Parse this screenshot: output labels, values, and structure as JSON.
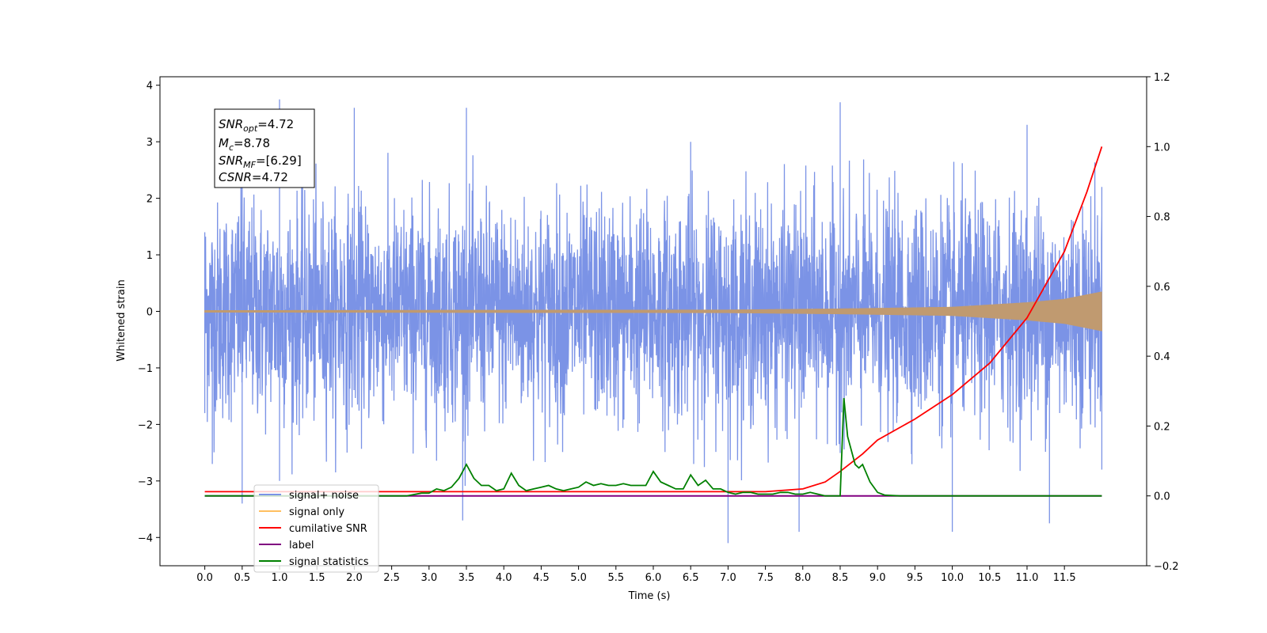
{
  "chart_data": {
    "type": "line",
    "xlabel": "Time (s)",
    "ylabel": "Whitened strain",
    "xlim": [
      -0.6,
      12.6
    ],
    "ylim": [
      -4.5,
      4.15
    ],
    "y2lim": [
      -0.2,
      1.2
    ],
    "x_ticks": [
      "0.0",
      "0.5",
      "1.0",
      "1.5",
      "2.0",
      "2.5",
      "3.0",
      "3.5",
      "4.0",
      "4.5",
      "5.0",
      "5.5",
      "6.0",
      "6.5",
      "7.0",
      "7.5",
      "8.0",
      "8.5",
      "9.0",
      "9.5",
      "10.0",
      "10.5",
      "11.0",
      "11.5"
    ],
    "y_ticks": [
      "4",
      "3",
      "2",
      "1",
      "0",
      "−1",
      "−2",
      "−3",
      "−4"
    ],
    "y2_ticks": [
      "1.2",
      "1.0",
      "0.8",
      "0.6",
      "0.4",
      "0.2",
      "0.0",
      "−0.2"
    ],
    "grid": false,
    "legend_placement": "lower-left",
    "annotation": {
      "snr_opt_base": "SNR",
      "snr_opt_sub": "opt",
      "snr_opt_val": "=4.72",
      "mc_base": "M",
      "mc_sub": "c",
      "mc_val": "=8.78",
      "snr_mf_base": "SNR",
      "snr_mf_sub": "MF",
      "snr_mf_val": "=[6.29]",
      "csnr_base": "CSNR",
      "csnr_val": "=4.72"
    },
    "series": [
      {
        "name": "signal+ noise",
        "color": "#7b93e6",
        "description_axis": "left",
        "envelope_peaks": [
          [
            0.0,
            1.4
          ],
          [
            0.5,
            2.8
          ],
          [
            1.0,
            3.75
          ],
          [
            2.0,
            3.6
          ],
          [
            3.5,
            3.6
          ],
          [
            6.5,
            3.0
          ],
          [
            8.5,
            3.7
          ],
          [
            11.0,
            3.3
          ],
          [
            12.0,
            2.2
          ]
        ],
        "envelope_troughs": [
          [
            0.0,
            -1.8
          ],
          [
            0.1,
            -2.7
          ],
          [
            0.5,
            -3.4
          ],
          [
            1.0,
            -3.0
          ],
          [
            3.45,
            -3.7
          ],
          [
            7.0,
            -4.1
          ],
          [
            7.95,
            -3.9
          ],
          [
            10.0,
            -3.9
          ],
          [
            11.3,
            -3.75
          ],
          [
            12.0,
            -2.8
          ]
        ]
      },
      {
        "name": "signal only",
        "color": "#ffbf60",
        "description_axis": "left",
        "amplitude": [
          [
            0.0,
            0.02
          ],
          [
            7.0,
            0.03
          ],
          [
            8.5,
            0.05
          ],
          [
            10.0,
            0.08
          ],
          [
            11.0,
            0.16
          ],
          [
            11.5,
            0.22
          ],
          [
            12.0,
            0.35
          ]
        ]
      },
      {
        "name": "cumilative SNR",
        "color": "#ff0000",
        "description_axis": "right",
        "x": [
          0.0,
          7.5,
          8.0,
          8.3,
          8.5,
          8.8,
          9.0,
          9.5,
          10.0,
          10.5,
          11.0,
          11.5,
          11.8,
          12.0
        ],
        "y": [
          0.012,
          0.012,
          0.02,
          0.04,
          0.07,
          0.12,
          0.16,
          0.22,
          0.29,
          0.38,
          0.51,
          0.7,
          0.87,
          1.0
        ]
      },
      {
        "name": "label",
        "color": "#800080",
        "description_axis": "right",
        "x": [
          0.0,
          12.0
        ],
        "y": [
          0.0,
          0.0
        ]
      },
      {
        "name": "signal statistics",
        "color": "#008000",
        "description_axis": "right",
        "x": [
          0.0,
          2.7,
          2.9,
          3.0,
          3.1,
          3.2,
          3.3,
          3.4,
          3.5,
          3.6,
          3.7,
          3.8,
          3.9,
          4.0,
          4.1,
          4.2,
          4.3,
          4.4,
          4.5,
          4.6,
          4.7,
          4.8,
          4.9,
          5.0,
          5.1,
          5.2,
          5.3,
          5.4,
          5.5,
          5.6,
          5.7,
          5.8,
          5.9,
          6.0,
          6.1,
          6.2,
          6.3,
          6.4,
          6.5,
          6.6,
          6.7,
          6.8,
          6.9,
          7.0,
          7.1,
          7.2,
          7.3,
          7.4,
          7.5,
          7.6,
          7.7,
          7.8,
          7.9,
          8.0,
          8.1,
          8.2,
          8.3,
          8.4,
          8.5,
          8.55,
          8.6,
          8.7,
          8.75,
          8.8,
          8.9,
          9.0,
          9.1,
          9.3,
          10.0,
          11.0,
          12.0
        ],
        "y": [
          0.0,
          0.0,
          0.008,
          0.008,
          0.02,
          0.015,
          0.025,
          0.05,
          0.09,
          0.05,
          0.03,
          0.03,
          0.015,
          0.02,
          0.065,
          0.03,
          0.015,
          0.02,
          0.025,
          0.03,
          0.02,
          0.015,
          0.02,
          0.025,
          0.04,
          0.03,
          0.035,
          0.03,
          0.03,
          0.035,
          0.03,
          0.03,
          0.03,
          0.07,
          0.04,
          0.03,
          0.02,
          0.02,
          0.06,
          0.03,
          0.045,
          0.02,
          0.02,
          0.01,
          0.005,
          0.01,
          0.01,
          0.005,
          0.005,
          0.005,
          0.01,
          0.01,
          0.005,
          0.005,
          0.01,
          0.005,
          0.0,
          0.0,
          0.0,
          0.28,
          0.17,
          0.09,
          0.08,
          0.09,
          0.04,
          0.01,
          0.002,
          0.0,
          0.0,
          0.0,
          0.0
        ]
      }
    ]
  },
  "legend": {
    "items": [
      {
        "label": "signal+ noise",
        "color": "#7b93e6"
      },
      {
        "label": "signal only",
        "color": "#ffbf60"
      },
      {
        "label": "cumilative SNR",
        "color": "#ff0000"
      },
      {
        "label": "label",
        "color": "#800080"
      },
      {
        "label": "signal statistics",
        "color": "#008000"
      }
    ]
  }
}
